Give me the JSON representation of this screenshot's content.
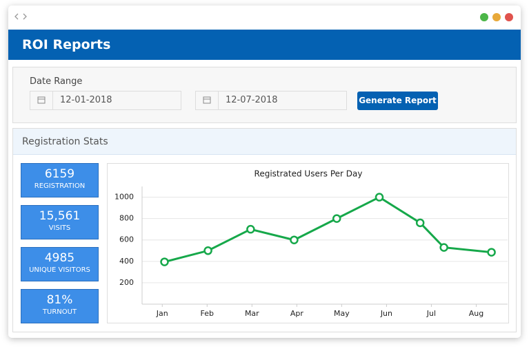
{
  "header": {
    "title": "ROI Reports"
  },
  "date_range": {
    "label": "Date Range",
    "start": "12-01-2018",
    "end": "12-07-2018",
    "button": "Generate Report"
  },
  "stats_panel": {
    "title": "Registration Stats",
    "stats": [
      {
        "value": "6159",
        "label": "REGISTRATION"
      },
      {
        "value": "15,561",
        "label": "VISITS"
      },
      {
        "value": "4985",
        "label": "UNIQUE VISITORS"
      },
      {
        "value": "81%",
        "label": "TURNOUT"
      }
    ]
  },
  "chart_data": {
    "type": "line",
    "title": "Registrated Users Per Day",
    "x": [
      0.05,
      1.02,
      1.97,
      2.94,
      3.89,
      4.84,
      5.75,
      6.28,
      7.34
    ],
    "series": [
      {
        "name": "Registrated Users",
        "color": "#16a84a",
        "values": [
          395,
          500,
          700,
          600,
          800,
          1000,
          760,
          530,
          485
        ]
      }
    ],
    "xlim": [
      -0.45,
      7.7
    ],
    "xticks": [
      {
        "value": 0,
        "label": "Jan"
      },
      {
        "value": 1,
        "label": "Feb"
      },
      {
        "value": 2,
        "label": "Mar"
      },
      {
        "value": 3,
        "label": "Apr"
      },
      {
        "value": 4,
        "label": "May"
      },
      {
        "value": 5,
        "label": "Jun"
      },
      {
        "value": 6,
        "label": "Jul"
      },
      {
        "value": 7,
        "label": "Aug"
      }
    ],
    "ylim": [
      0,
      1100
    ],
    "yticks": [
      200,
      400,
      600,
      800,
      1000
    ],
    "grid": true
  }
}
